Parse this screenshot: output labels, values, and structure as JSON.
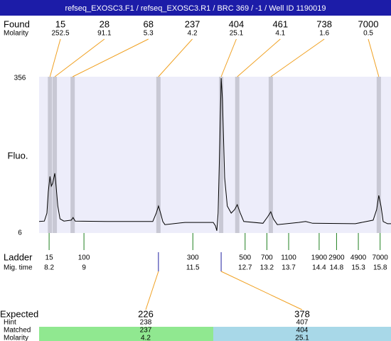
{
  "title": "refseq_EXOSC3.F1 / refseq_EXOSC3.R1 / BRC 369 / -1 / Well ID 1190019",
  "chart_data": {
    "type": "line",
    "y_label": "Fluo.",
    "found_label": "Found",
    "molarity_label": "Molarity",
    "found": [
      {
        "size": 15,
        "molarity": 252.5,
        "time": 8.22
      },
      {
        "size": 28,
        "molarity": 91.1,
        "time": 8.33
      },
      {
        "size": 68,
        "molarity": 5.3,
        "time": 8.74
      },
      {
        "size": 237,
        "molarity": 4.2,
        "time": 10.71
      },
      {
        "size": 404,
        "molarity": 25.1,
        "time": 12.15
      },
      {
        "size": 461,
        "molarity": 4.1,
        "time": 12.52
      },
      {
        "size": 738,
        "molarity": 1.6,
        "time": 13.29
      },
      {
        "size": 7000,
        "molarity": 0.5,
        "time": 15.77
      }
    ],
    "trace": {
      "x": [
        7.97,
        8.09,
        8.15,
        8.18,
        8.22,
        8.25,
        8.28,
        8.33,
        8.36,
        8.4,
        8.45,
        8.54,
        8.71,
        8.75,
        8.8,
        9.52,
        10.58,
        10.66,
        10.71,
        10.76,
        10.81,
        10.86,
        11.32,
        11.97,
        12.02,
        12.05,
        12.08,
        12.12,
        12.15,
        12.18,
        12.23,
        12.29,
        12.38,
        12.46,
        12.52,
        12.59,
        12.67,
        13.11,
        13.22,
        13.29,
        13.35,
        13.44,
        13.93,
        14.09,
        14.25,
        15.23,
        15.64,
        15.72,
        15.77,
        15.82,
        15.87,
        15.97,
        16.05
      ],
      "values": [
        32,
        33,
        51,
        99,
        134,
        112,
        118,
        141,
        112,
        67,
        38,
        33,
        35,
        41,
        33,
        32,
        32,
        51,
        67,
        51,
        32,
        25,
        30,
        30,
        22,
        11,
        51,
        211,
        356,
        308,
        131,
        67,
        51,
        59,
        70,
        51,
        32,
        28,
        43,
        54,
        38,
        25,
        30,
        32,
        28,
        27,
        35,
        59,
        91,
        67,
        32,
        27,
        27
      ]
    },
    "color": "#000000",
    "xlim": [
      7.97,
      16.05
    ],
    "ylim": [
      6,
      356
    ],
    "yticks": [
      6,
      356
    ],
    "ladder_label": "Ladder",
    "mig_time_label": "Mig. time",
    "ladder": {
      "sizes": [
        15,
        100,
        300,
        500,
        700,
        1100,
        1900,
        2900,
        4900,
        7000
      ],
      "times": [
        8.2,
        9,
        11.5,
        12.7,
        13.2,
        13.7,
        14.4,
        14.8,
        15.3,
        15.8
      ]
    },
    "expected_label": "Expected",
    "hint_label": "Hint",
    "matched_label": "Matched",
    "expected_molarity_label": "Molarity",
    "expected": [
      {
        "size": 226,
        "hint": 238,
        "matched": 237,
        "molarity": 4.2,
        "time": 10.71
      },
      {
        "size": 378,
        "hint": 407,
        "matched": 404,
        "molarity": 25.1,
        "time": 12.15
      }
    ]
  }
}
